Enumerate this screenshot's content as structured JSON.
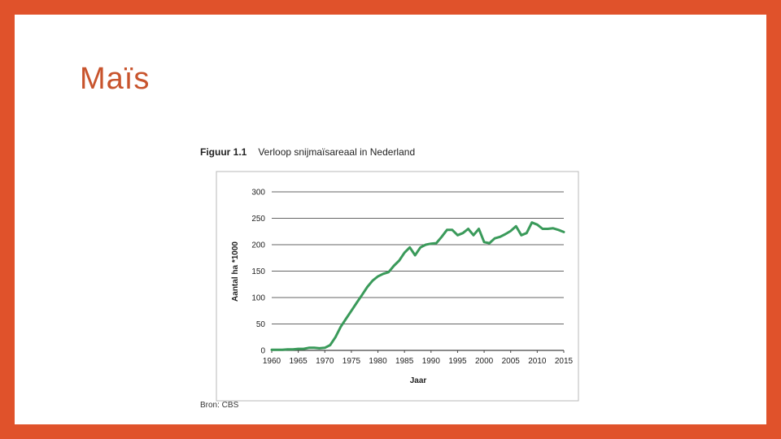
{
  "slide": {
    "title": "Maïs"
  },
  "figure": {
    "label": "Figuur 1.1",
    "caption": "Verloop snijmaïsareaal in Nederland",
    "source": "Bron: CBS"
  },
  "colors": {
    "accent": "#e0522b",
    "title": "#c8542d",
    "line": "#3a9a5a"
  },
  "chart_data": {
    "type": "line",
    "xlabel": "Jaar",
    "ylabel": "Aantal ha *1000",
    "xlim": [
      1960,
      2015
    ],
    "ylim": [
      0,
      300
    ],
    "grid": "horizontal",
    "xticks": [
      1960,
      1965,
      1970,
      1975,
      1980,
      1985,
      1990,
      1995,
      2000,
      2005,
      2010,
      2015
    ],
    "yticks": [
      0,
      50,
      100,
      150,
      200,
      250,
      300
    ],
    "series": [
      {
        "x": [
          1960,
          1961,
          1962,
          1963,
          1964,
          1965,
          1966,
          1967,
          1968,
          1969,
          1970,
          1971,
          1972,
          1973,
          1974,
          1975,
          1976,
          1977,
          1978,
          1979,
          1980,
          1981,
          1982,
          1983,
          1984,
          1985,
          1986,
          1987,
          1988,
          1989,
          1990,
          1991,
          1992,
          1993,
          1994,
          1995,
          1996,
          1997,
          1998,
          1999,
          2000,
          2001,
          2002,
          2003,
          2004,
          2005,
          2006,
          2007,
          2008,
          2009,
          2010,
          2011,
          2012,
          2013,
          2014,
          2015
        ],
        "y": [
          1,
          1,
          1,
          2,
          2,
          3,
          3,
          5,
          5,
          4,
          5,
          10,
          25,
          45,
          60,
          75,
          90,
          105,
          120,
          132,
          140,
          145,
          148,
          160,
          170,
          185,
          195,
          180,
          195,
          200,
          202,
          203,
          215,
          228,
          228,
          218,
          222,
          230,
          218,
          230,
          205,
          203,
          212,
          215,
          220,
          226,
          235,
          218,
          222,
          242,
          238,
          230,
          230,
          231,
          228,
          224
        ]
      }
    ]
  }
}
